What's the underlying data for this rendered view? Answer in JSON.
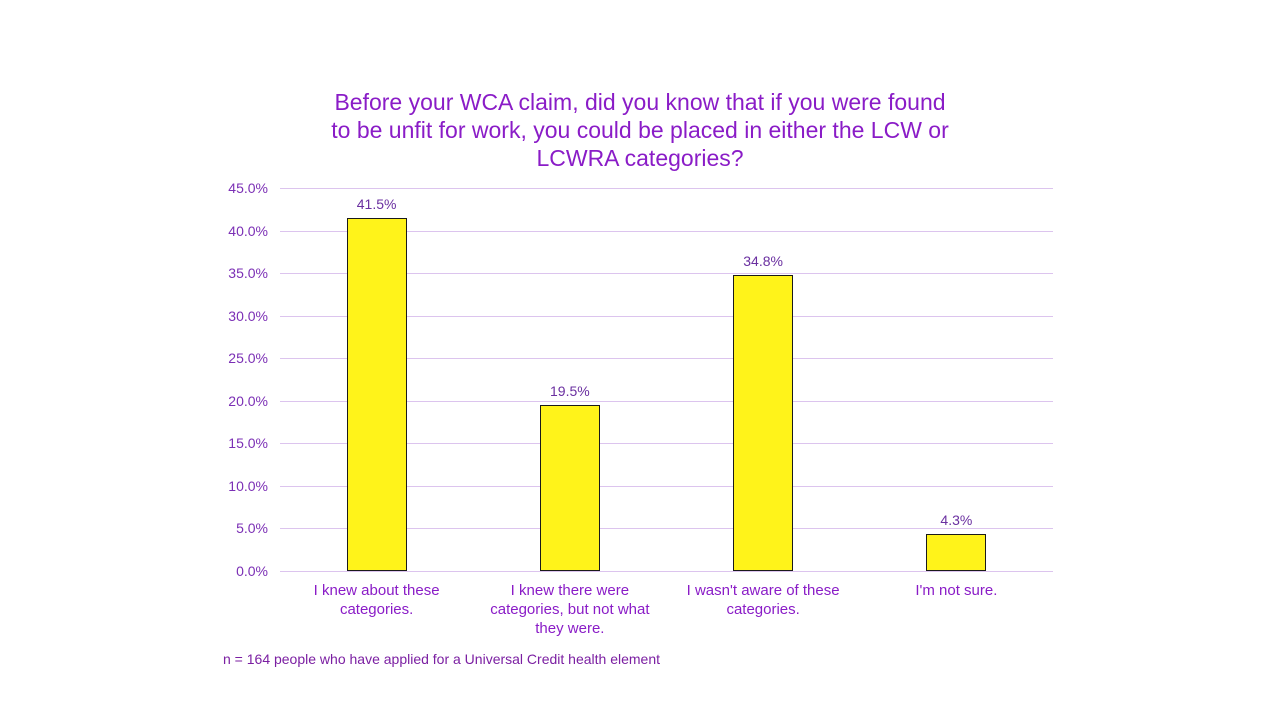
{
  "chart_data": {
    "type": "bar",
    "title": "Before your WCA claim, did you know that if you were found to be unfit for work, you could be placed in either the LCW or LCWRA categories?",
    "categories": [
      "I knew about these categories.",
      "I knew there were categories, but not what they were.",
      "I wasn't aware of these categories.",
      "I'm not sure."
    ],
    "values": [
      41.5,
      19.5,
      34.8,
      4.3
    ],
    "value_labels": [
      "41.5%",
      "19.5%",
      "34.8%",
      "4.3%"
    ],
    "xlabel": "",
    "ylabel": "",
    "ylim": [
      0,
      45
    ],
    "yticks": [
      "0.0%",
      "5.0%",
      "10.0%",
      "15.0%",
      "20.0%",
      "25.0%",
      "30.0%",
      "35.0%",
      "40.0%",
      "45.0%"
    ],
    "grid": true,
    "legend": null,
    "bar_color": "#fff31a",
    "footnote": "n = 164 people who have applied for a Universal Credit health element"
  },
  "title_lines": [
    "Before your WCA claim, did you know that if you were found",
    "to be unfit for work, you could be placed in either the LCW or",
    "LCWRA categories?"
  ],
  "x_label_lines": [
    [
      "I knew about these",
      "categories."
    ],
    [
      "I knew there were",
      "categories, but not what",
      "they were."
    ],
    [
      "I wasn't aware of these",
      "categories."
    ],
    [
      "I'm not sure."
    ]
  ],
  "colors": {
    "title": "#8a1cc7",
    "text": "#7b1fa2",
    "bar": "#fff31a",
    "bar_border": "#1a1a1a",
    "grid": "#dcc4ee"
  }
}
